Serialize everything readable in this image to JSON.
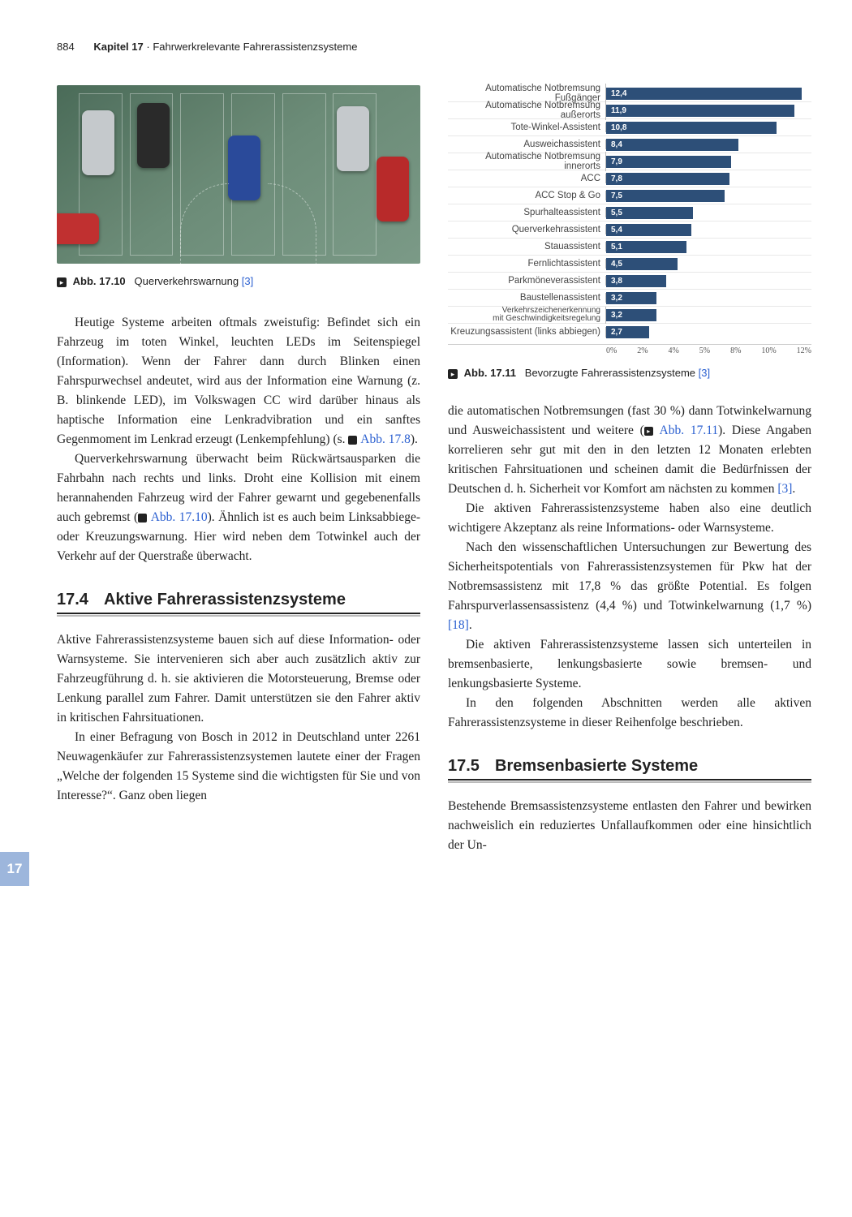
{
  "header": {
    "page_number": "884",
    "chapter_label": "Kapitel 17",
    "separator": " · ",
    "chapter_title": "Fahrwerkrelevante Fahrerassistenzsysteme"
  },
  "side_tab": "17",
  "fig_17_10": {
    "icon_glyph": "▸",
    "label": "Abb. 17.10",
    "caption": "Querverkehrswarnung",
    "ref": "[3]"
  },
  "fig_17_11": {
    "icon_glyph": "▸",
    "label": "Abb. 17.11",
    "caption": "Bevorzugte Fahrerassistenzsysteme",
    "ref": "[3]"
  },
  "chart": {
    "x_ticks": [
      "0%",
      "2%",
      "4%",
      "5%",
      "8%",
      "10%",
      "12%"
    ],
    "x_max": 13,
    "gridlines_at": [
      0,
      2,
      4,
      5,
      8,
      10,
      12
    ],
    "bar_color": "#2d4f78",
    "label_color": "#444444",
    "value_color": "#ffffff",
    "rows": [
      {
        "label": "Automatische Notbremsung Fußgänger",
        "value": 12.4,
        "display": "12,4"
      },
      {
        "label": "Automatische Notbremsung außerorts",
        "value": 11.9,
        "display": "11,9"
      },
      {
        "label": "Tote-Winkel-Assistent",
        "value": 10.8,
        "display": "10,8"
      },
      {
        "label": "Ausweichassistent",
        "value": 8.4,
        "display": "8,4"
      },
      {
        "label": "Automatische Notbremsung innerorts",
        "value": 7.9,
        "display": "7,9"
      },
      {
        "label": "ACC",
        "value": 7.8,
        "display": "7,8"
      },
      {
        "label": "ACC Stop & Go",
        "value": 7.5,
        "display": "7,5"
      },
      {
        "label": "Spurhalteassistent",
        "value": 5.5,
        "display": "5,5"
      },
      {
        "label": "Querverkehrassistent",
        "value": 5.4,
        "display": "5,4"
      },
      {
        "label": "Stauassistent",
        "value": 5.1,
        "display": "5,1"
      },
      {
        "label": "Fernlichtassistent",
        "value": 4.5,
        "display": "4,5"
      },
      {
        "label": "Parkmöneverassistent",
        "value": 3.8,
        "display": "3,8"
      },
      {
        "label": "Baustellenassistent",
        "value": 3.2,
        "display": "3,2"
      },
      {
        "label": "Verkehrszeichenerkennung\nmit Geschwindigkeitsregelung",
        "value": 3.2,
        "display": "3,2",
        "two_line": true
      },
      {
        "label": "Kreuzungsassistent (links abbiegen)",
        "value": 2.7,
        "display": "2,7"
      }
    ]
  },
  "left_col": {
    "p1a": "Heutige Systeme arbeiten oftmals zweistufig: Befindet sich ein Fahrzeug im toten Winkel, leuchten LEDs im Seitenspiegel (Information). Wenn der Fahrer dann durch Blinken einen Fahrspurwechsel andeutet, wird aus der Information eine Warnung (z. B. blinkende LED), im Volkswagen CC wird darüber hinaus als haptische Information eine Lenkradvibration und ein sanftes Gegenmoment im Lenkrad erzeugt (Lenkempfehlung) (s. ",
    "p1_ref": "Abb. 17.8",
    "p1b": ").",
    "p2a": "Querverkehrswarnung überwacht beim Rückwärtsausparken die Fahrbahn nach rechts und links. Droht eine Kollision mit einem herannahenden Fahrzeug wird der Fahrer gewarnt und gegebenenfalls auch gebremst (",
    "p2_ref": "Abb. 17.10",
    "p2b": "). Ähnlich ist es auch beim Linksabbiege- oder Kreuzungswarnung. Hier wird neben dem Totwinkel auch der Verkehr auf der Querstraße überwacht.",
    "sec174_num": "17.4",
    "sec174_title": "Aktive Fahrerassistenzsysteme",
    "p3": "Aktive Fahrerassistenzsysteme bauen sich auf diese Information- oder Warnsysteme. Sie intervenieren sich aber auch zusätzlich aktiv zur Fahrzeugführung d. h. sie aktivieren die Motorsteuerung, Bremse oder Lenkung parallel zum Fahrer. Damit unterstützen sie den Fahrer aktiv in kritischen Fahrsituationen.",
    "p4": "In einer Befragung von Bosch in 2012 in Deutschland unter 2261 Neuwagenkäufer zur Fahrerassistenzsystemen lautete einer der Fragen „Welche der folgenden 15 Systeme sind die wichtigsten für Sie und von Interesse?“. Ganz oben liegen"
  },
  "right_col": {
    "p1a": "die automatischen Notbremsungen (fast 30 %) dann Totwinkelwarnung und Ausweichassistent und weitere (",
    "p1_ref": "Abb. 17.11",
    "p1b": "). Diese Angaben korrelieren sehr gut mit den in den letzten 12 Monaten erlebten kritischen Fahrsituationen und scheinen damit die Bedürfnissen der Deutschen d. h. Sicherheit vor Komfort am nächsten zu kommen ",
    "p1_cite": "[3]",
    "p1c": ".",
    "p2": "Die aktiven Fahrerassistenzsysteme haben also eine deutlich wichtigere Akzeptanz als reine Informations- oder Warnsysteme.",
    "p3a": "Nach den wissenschaftlichen Untersuchungen zur Bewertung des Sicherheitspotentials von Fahrerassistenzsystemen für Pkw hat der Notbremsassistenz mit 17,8 % das größte Potential. Es folgen Fahrspurverlassensassistenz (4,4 %) und Totwinkelwarnung (1,7 %) ",
    "p3_cite": "[18]",
    "p3b": ".",
    "p4": "Die aktiven Fahrerassistenzsysteme lassen sich unterteilen in bremsenbasierte, lenkungsbasierte sowie bremsen- und lenkungsbasierte Systeme.",
    "p5": "In den folgenden Abschnitten werden alle aktiven Fahrerassistenzsysteme in dieser Reihenfolge beschrieben.",
    "sec175_num": "17.5",
    "sec175_title": "Bremsenbasierte Systeme",
    "p6": "Bestehende Bremsassistenzsysteme entlasten den Fahrer und bewirken nachweislich ein reduziertes Unfallaufkommen oder eine hinsichtlich der Un-"
  }
}
